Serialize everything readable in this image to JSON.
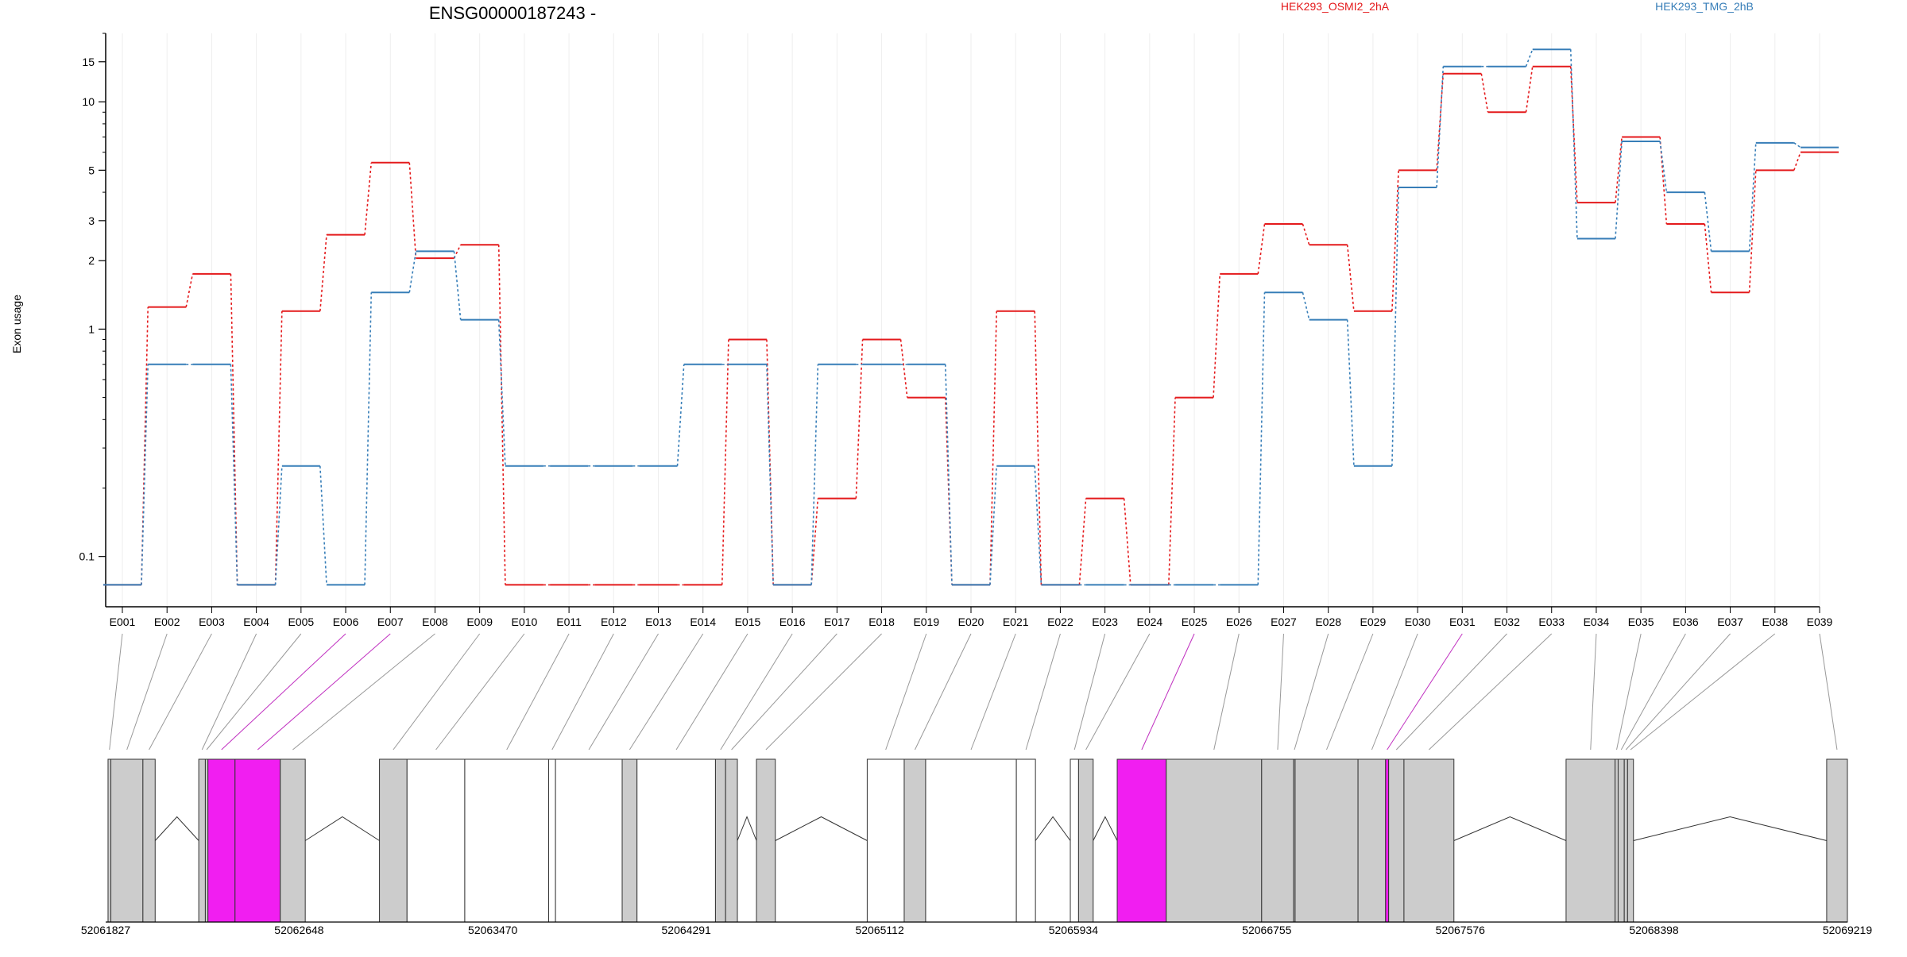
{
  "chart_data": {
    "type": "line",
    "title": "ENSG00000187243 -",
    "xlabel": "",
    "ylabel": "Exon usage",
    "yscale": "log",
    "ylim": [
      0.07,
      20
    ],
    "yticks": [
      0.1,
      1,
      2,
      3,
      5,
      10,
      15
    ],
    "ytick_labels": [
      "0.1",
      "1",
      "2",
      "3",
      "5",
      "10",
      "15"
    ],
    "grid": "vertical",
    "legend_placement": "top",
    "categories": [
      "E001",
      "E002",
      "E003",
      "E004",
      "E005",
      "E006",
      "E007",
      "E008",
      "E009",
      "E010",
      "E011",
      "E012",
      "E013",
      "E014",
      "E015",
      "E016",
      "E017",
      "E018",
      "E019",
      "E020",
      "E021",
      "E022",
      "E023",
      "E024",
      "E025",
      "E026",
      "E027",
      "E028",
      "E029",
      "E030",
      "E031",
      "E032",
      "E033",
      "E034",
      "E035",
      "E036",
      "E037",
      "E038",
      "E039"
    ],
    "series": [
      {
        "name": "HEK293_OSMI2_2hA",
        "color": "#e41a1c",
        "values": [
          0.075,
          1.25,
          1.75,
          0.075,
          1.2,
          2.6,
          5.4,
          2.05,
          2.35,
          0.075,
          0.075,
          0.075,
          0.075,
          0.075,
          0.9,
          0.075,
          0.18,
          0.9,
          0.5,
          0.075,
          1.2,
          0.075,
          0.18,
          0.075,
          0.5,
          1.75,
          2.9,
          2.35,
          1.2,
          5.0,
          13.3,
          9.0,
          14.3,
          3.6,
          7.0,
          2.9,
          1.45,
          5.0,
          6.0
        ]
      },
      {
        "name": "HEK293_TMG_2hB",
        "color": "#377eb8",
        "values": [
          0.075,
          0.7,
          0.7,
          0.075,
          0.25,
          0.075,
          1.45,
          2.2,
          1.1,
          0.25,
          0.25,
          0.25,
          0.25,
          0.7,
          0.7,
          0.075,
          0.7,
          0.7,
          0.7,
          0.075,
          0.25,
          0.075,
          0.075,
          0.075,
          0.075,
          0.075,
          1.45,
          1.1,
          0.25,
          4.2,
          14.3,
          14.3,
          17.0,
          2.5,
          6.7,
          4.0,
          2.2,
          6.6,
          6.3
        ]
      }
    ],
    "genomic_axis": {
      "range": [
        52061827,
        52069219
      ],
      "tick_labels": [
        "52061827",
        "52062648",
        "52063470",
        "52064291",
        "52065112",
        "52065934",
        "52066755",
        "52067576",
        "52068398",
        "52069219"
      ]
    },
    "gene_model": {
      "exon_color_default": "#cccccc",
      "exon_color_highlight": "#f11ef1",
      "exon_color_blank": "#ffffff",
      "exons": [
        {
          "id": "E001",
          "start": 52061837,
          "end": 52061849,
          "fill": "grey"
        },
        {
          "id": "E002",
          "start": 52061849,
          "end": 52061985,
          "fill": "grey"
        },
        {
          "id": "E003",
          "start": 52061985,
          "end": 52062037,
          "fill": "grey"
        },
        {
          "id": "E004",
          "start": 52062222,
          "end": 52062250,
          "fill": "grey"
        },
        {
          "id": "E005",
          "start": 52062250,
          "end": 52062261,
          "fill": "grey"
        },
        {
          "id": "E006",
          "start": 52062261,
          "end": 52062376,
          "fill": "magenta"
        },
        {
          "id": "E007",
          "start": 52062376,
          "end": 52062568,
          "fill": "magenta"
        },
        {
          "id": "E008",
          "start": 52062568,
          "end": 52062674,
          "fill": "grey"
        },
        {
          "id": "E009",
          "start": 52062989,
          "end": 52063106,
          "fill": "grey"
        },
        {
          "id": "E010",
          "start": 52063106,
          "end": 52063351,
          "fill": "blank"
        },
        {
          "id": "E011",
          "start": 52063351,
          "end": 52063707,
          "fill": "blank"
        },
        {
          "id": "E012",
          "start": 52063707,
          "end": 52063736,
          "fill": "blank"
        },
        {
          "id": "E013",
          "start": 52063736,
          "end": 52064019,
          "fill": "blank"
        },
        {
          "id": "E014",
          "start": 52064019,
          "end": 52064082,
          "fill": "grey"
        },
        {
          "id": "E015",
          "start": 52064082,
          "end": 52064415,
          "fill": "blank"
        },
        {
          "id": "E016",
          "start": 52064415,
          "end": 52064458,
          "fill": "grey"
        },
        {
          "id": "E017",
          "start": 52064458,
          "end": 52064508,
          "fill": "grey"
        },
        {
          "id": "E018",
          "start": 52064589,
          "end": 52064669,
          "fill": "grey"
        },
        {
          "id": "E019",
          "start": 52065059,
          "end": 52065216,
          "fill": "blank"
        },
        {
          "id": "E020",
          "start": 52065216,
          "end": 52065307,
          "fill": "grey"
        },
        {
          "id": "E021",
          "start": 52065307,
          "end": 52065692,
          "fill": "blank"
        },
        {
          "id": "E022",
          "start": 52065692,
          "end": 52065773,
          "fill": "blank"
        },
        {
          "id": "E023",
          "start": 52065921,
          "end": 52065956,
          "fill": "blank"
        },
        {
          "id": "E024",
          "start": 52065956,
          "end": 52066018,
          "fill": "grey"
        },
        {
          "id": "E025",
          "start": 52066120,
          "end": 52066328,
          "fill": "magenta"
        },
        {
          "id": "E026",
          "start": 52066328,
          "end": 52066733,
          "fill": "grey"
        },
        {
          "id": "E027",
          "start": 52066733,
          "end": 52066869,
          "fill": "grey"
        },
        {
          "id": "E028",
          "start": 52066869,
          "end": 52066875,
          "fill": "grey"
        },
        {
          "id": "E029",
          "start": 52066875,
          "end": 52067142,
          "fill": "grey"
        },
        {
          "id": "E030",
          "start": 52067142,
          "end": 52067259,
          "fill": "grey"
        },
        {
          "id": "E031",
          "start": 52067259,
          "end": 52067272,
          "fill": "magenta"
        },
        {
          "id": "E032",
          "start": 52067272,
          "end": 52067337,
          "fill": "grey"
        },
        {
          "id": "E033",
          "start": 52067337,
          "end": 52067549,
          "fill": "grey"
        },
        {
          "id": "E034",
          "start": 52068025,
          "end": 52068233,
          "fill": "grey"
        },
        {
          "id": "E035",
          "start": 52068233,
          "end": 52068246,
          "fill": "grey"
        },
        {
          "id": "E036",
          "start": 52068246,
          "end": 52068272,
          "fill": "grey"
        },
        {
          "id": "E037",
          "start": 52068272,
          "end": 52068286,
          "fill": "grey"
        },
        {
          "id": "E038",
          "start": 52068286,
          "end": 52068311,
          "fill": "grey"
        },
        {
          "id": "E039",
          "start": 52069131,
          "end": 52069219,
          "fill": "grey"
        }
      ]
    }
  }
}
